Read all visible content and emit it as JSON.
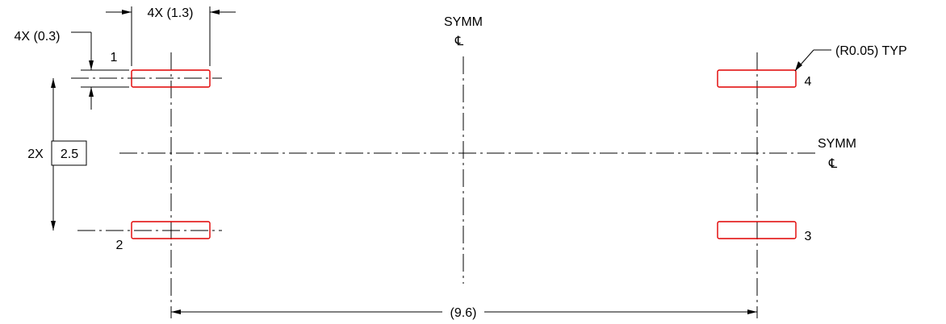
{
  "labels": {
    "pad_width": "4X (1.3)",
    "pad_height": "4X (0.3)",
    "pitch_prefix": "2X",
    "pitch_value": "2.5",
    "span": "(9.6)",
    "corner_radius": "(R0.05) TYP",
    "symm_vertical": "SYMM",
    "symm_horizontal": "SYMM",
    "centerline_glyph": "℄"
  },
  "pads": [
    {
      "number": "1"
    },
    {
      "number": "2"
    },
    {
      "number": "3"
    },
    {
      "number": "4"
    }
  ],
  "colors": {
    "pad_outline": "#e00000",
    "line": "#000000"
  }
}
